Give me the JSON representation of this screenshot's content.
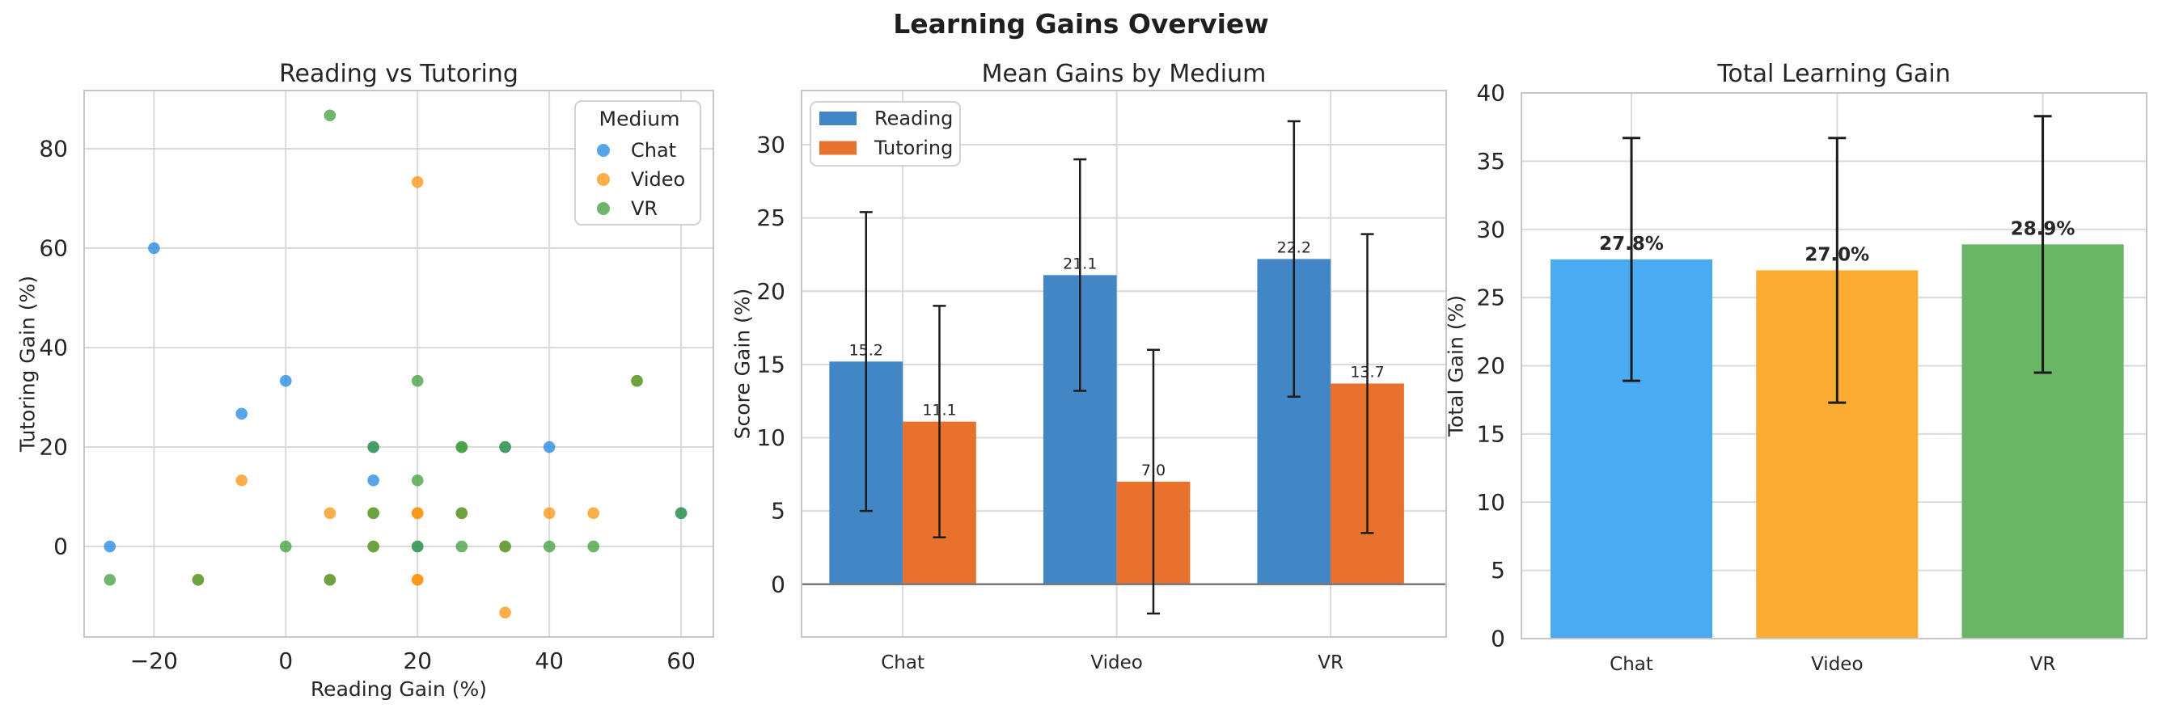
{
  "suptitle": "Learning Gains Overview",
  "palette": {
    "chat": "#1f86e0",
    "video": "#f9930c",
    "vr": "#3f9e3c",
    "chat_solid": "#4aabf3",
    "video_solid": "#fcab33",
    "vr_solid": "#6ab566",
    "reading": "#4286c6",
    "tutoring": "#e8712d",
    "text": "#262626",
    "grid": "#d9d9d9",
    "spine": "#c6c6c6",
    "zero_line": "#7a7a7a",
    "error_bar": "#1c1c1c",
    "legend_border": "#d2d2d2",
    "legend_bg": "#ffffff"
  },
  "chart_data": [
    {
      "type": "scatter",
      "title": "Reading vs Tutoring",
      "xlabel": "Reading Gain (%)",
      "ylabel": "Tutoring Gain (%)",
      "xlim": [
        -30.6,
        64.9
      ],
      "ylim": [
        -18.2,
        91.7
      ],
      "xticks": {
        "values": [
          -20,
          0,
          20,
          40,
          60
        ],
        "labels": [
          "−20",
          "0",
          "20",
          "40",
          "60"
        ]
      },
      "yticks": {
        "values": [
          0,
          20,
          40,
          60,
          80
        ],
        "labels": [
          "0",
          "20",
          "40",
          "60",
          "80"
        ]
      },
      "grid": true,
      "marker_opacity": 0.75,
      "legend": {
        "title": "Medium",
        "position": "upper right",
        "entries": [
          {
            "label": "Chat",
            "color": "chat"
          },
          {
            "label": "Video",
            "color": "video"
          },
          {
            "label": "VR",
            "color": "vr"
          }
        ]
      },
      "series": [
        {
          "name": "Chat",
          "color": "chat",
          "points": [
            [
              -26.7,
              0
            ],
            [
              -20,
              60
            ],
            [
              -6.7,
              26.7
            ],
            [
              0,
              33.3
            ],
            [
              13.3,
              13.3
            ],
            [
              13.3,
              20
            ],
            [
              20,
              0
            ],
            [
              33.3,
              20
            ],
            [
              40,
              20
            ],
            [
              60,
              6.7
            ]
          ]
        },
        {
          "name": "Video",
          "color": "video",
          "points": [
            [
              -13.3,
              -6.7
            ],
            [
              -6.7,
              13.3
            ],
            [
              6.7,
              6.7
            ],
            [
              6.7,
              -6.7
            ],
            [
              13.3,
              6.7
            ],
            [
              13.3,
              0
            ],
            [
              20,
              73.3
            ],
            [
              20,
              6.7
            ],
            [
              20,
              6.7
            ],
            [
              20,
              -6.7
            ],
            [
              20,
              -6.7
            ],
            [
              26.7,
              6.7
            ],
            [
              33.3,
              0
            ],
            [
              33.3,
              -13.3
            ],
            [
              40,
              6.7
            ],
            [
              46.7,
              6.7
            ],
            [
              53.3,
              33.3
            ]
          ]
        },
        {
          "name": "VR",
          "color": "vr",
          "points": [
            [
              -26.7,
              -6.7
            ],
            [
              -13.3,
              -6.7
            ],
            [
              0,
              0
            ],
            [
              6.7,
              86.7
            ],
            [
              6.7,
              -6.7
            ],
            [
              13.3,
              0
            ],
            [
              13.3,
              6.7
            ],
            [
              13.3,
              20
            ],
            [
              20,
              0
            ],
            [
              20,
              13.3
            ],
            [
              20,
              33.3
            ],
            [
              26.7,
              0
            ],
            [
              26.7,
              6.7
            ],
            [
              26.7,
              20
            ],
            [
              26.7,
              20
            ],
            [
              33.3,
              0
            ],
            [
              33.3,
              20
            ],
            [
              40,
              0
            ],
            [
              46.7,
              0
            ],
            [
              53.3,
              33.3
            ],
            [
              60,
              6.7
            ]
          ]
        }
      ]
    },
    {
      "type": "grouped_bar",
      "title": "Mean Gains by Medium",
      "xlabel": "",
      "ylabel": "Score Gain (%)",
      "categories": [
        "Chat",
        "Video",
        "VR"
      ],
      "xlim": [
        -0.473,
        2.54
      ],
      "ylim": [
        -3.6,
        33.7
      ],
      "yticks": {
        "values": [
          0,
          5,
          10,
          15,
          20,
          25,
          30
        ],
        "labels": [
          "0",
          "5",
          "10",
          "15",
          "20",
          "25",
          "30"
        ]
      },
      "grid": true,
      "zero_line": true,
      "bar_width": 0.343,
      "legend": {
        "position": "upper left",
        "entries": [
          {
            "label": "Reading",
            "color": "reading"
          },
          {
            "label": "Tutoring",
            "color": "tutoring"
          }
        ]
      },
      "series": [
        {
          "name": "Reading",
          "color": "reading",
          "values": [
            15.2,
            21.1,
            22.2
          ],
          "errors": [
            10.2,
            7.9,
            9.4
          ],
          "value_labels": [
            "15.2",
            "21.1",
            "22.2"
          ]
        },
        {
          "name": "Tutoring",
          "color": "tutoring",
          "values": [
            11.1,
            7.0,
            13.7
          ],
          "errors": [
            7.9,
            9.0,
            10.2
          ],
          "value_labels": [
            "11.1",
            "7.0",
            "13.7"
          ]
        }
      ]
    },
    {
      "type": "bar",
      "title": "Total Learning Gain",
      "xlabel": "",
      "ylabel": "Total Gain (%)",
      "categories": [
        "Chat",
        "Video",
        "VR"
      ],
      "xlim": [
        -0.535,
        2.505
      ],
      "ylim": [
        0,
        40
      ],
      "yticks": {
        "values": [
          0,
          5,
          10,
          15,
          20,
          25,
          30,
          35,
          40
        ],
        "labels": [
          "0",
          "5",
          "10",
          "15",
          "20",
          "25",
          "30",
          "35",
          "40"
        ]
      },
      "grid": true,
      "bar_width": 0.787,
      "values": [
        27.8,
        27.0,
        28.9
      ],
      "errors": [
        8.9,
        9.7,
        9.4
      ],
      "value_labels": [
        "27.8%",
        "27.0%",
        "28.9%"
      ],
      "bar_colors": [
        "chat_solid",
        "video_solid",
        "vr_solid"
      ]
    }
  ]
}
